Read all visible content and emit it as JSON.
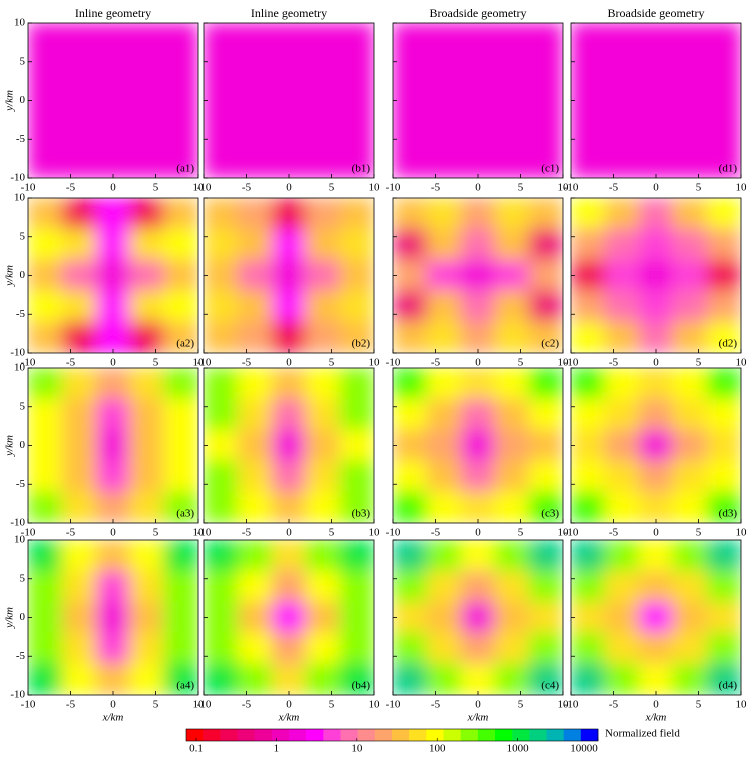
{
  "chart_data": {
    "type": "heatmap",
    "column_titles": [
      "Inline geometry",
      "Inline geometry",
      "Broadside geometry",
      "Broadside geometry"
    ],
    "xlabel": "x/km",
    "ylabel": "y/km",
    "xlim": [
      -10,
      10
    ],
    "ylim": [
      -10,
      10
    ],
    "xticks": [
      -10,
      -5,
      0,
      5,
      10
    ],
    "yticks": [
      -10,
      -5,
      0,
      5,
      10
    ],
    "colors": [
      "#ff0000",
      "#f8002e",
      "#f20055",
      "#ee0078",
      "#ee0098",
      "#f000b8",
      "#f400d8",
      "#ff00ff",
      "#ff40d8",
      "#ff70b0",
      "#ff8c8c",
      "#ffa46a",
      "#ffc040",
      "#ffe020",
      "#ffff00",
      "#ccff00",
      "#88ff00",
      "#44ff00",
      "#00ff00",
      "#00e840",
      "#00d080",
      "#00b4b4",
      "#0080e0",
      "#0000ff"
    ],
    "colorbar": {
      "label": "Normalized field",
      "lim": [
        0.075,
        10000
      ],
      "ticks": [
        0.1,
        1,
        10,
        100,
        1000,
        10000
      ],
      "log": true
    },
    "panels": [
      {
        "label": "(a1)",
        "z": [
          [
            2,
            2,
            2,
            2,
            2
          ],
          [
            2,
            2,
            2,
            2,
            2
          ],
          [
            2,
            2,
            1.5,
            2,
            2
          ],
          [
            2,
            2,
            2,
            2,
            2
          ],
          [
            2,
            2,
            2,
            2,
            2
          ]
        ]
      },
      {
        "label": "(b1)",
        "z": [
          [
            2,
            2,
            2,
            2,
            2
          ],
          [
            2,
            2,
            2,
            2,
            2
          ],
          [
            2,
            2,
            1.5,
            2,
            2
          ],
          [
            2,
            2,
            2,
            2,
            2
          ],
          [
            2,
            2,
            2,
            2,
            2
          ]
        ]
      },
      {
        "label": "(c1)",
        "z": [
          [
            2,
            2,
            2,
            2,
            2
          ],
          [
            2,
            2,
            2,
            2,
            2
          ],
          [
            2,
            2,
            1.5,
            2,
            2
          ],
          [
            2,
            2,
            2,
            2,
            2
          ],
          [
            2,
            2,
            2,
            2,
            2
          ]
        ]
      },
      {
        "label": "(d1)",
        "z": [
          [
            2,
            2,
            2,
            2,
            2
          ],
          [
            2,
            2,
            2,
            2,
            2
          ],
          [
            2,
            2,
            1.5,
            2,
            2
          ],
          [
            2,
            2,
            2,
            2,
            2
          ],
          [
            2,
            2,
            2,
            2,
            2
          ]
        ]
      },
      {
        "label": "(a2)",
        "z": [
          [
            30,
            0.3,
            3,
            0.3,
            30
          ],
          [
            100,
            60,
            3,
            60,
            100
          ],
          [
            30,
            10,
            2,
            10,
            30
          ],
          [
            100,
            60,
            3,
            60,
            100
          ],
          [
            30,
            0.3,
            3,
            0.3,
            30
          ]
        ]
      },
      {
        "label": "(b2)",
        "z": [
          [
            30,
            20,
            0.3,
            20,
            30
          ],
          [
            60,
            30,
            3,
            30,
            60
          ],
          [
            30,
            10,
            2,
            10,
            30
          ],
          [
            60,
            30,
            3,
            30,
            60
          ],
          [
            30,
            20,
            0.3,
            20,
            30
          ]
        ]
      },
      {
        "label": "(c2)",
        "z": [
          [
            30,
            60,
            20,
            60,
            30
          ],
          [
            0.5,
            30,
            10,
            30,
            0.5
          ],
          [
            20,
            5,
            2,
            5,
            20
          ],
          [
            0.5,
            30,
            10,
            30,
            0.5
          ],
          [
            30,
            60,
            20,
            60,
            30
          ]
        ]
      },
      {
        "label": "(d2)",
        "z": [
          [
            100,
            30,
            10,
            30,
            100
          ],
          [
            20,
            10,
            5,
            10,
            20
          ],
          [
            0.3,
            5,
            2,
            5,
            0.3
          ],
          [
            20,
            10,
            5,
            10,
            20
          ],
          [
            100,
            30,
            10,
            30,
            100
          ]
        ]
      },
      {
        "label": "(a3)",
        "z": [
          [
            300,
            60,
            20,
            60,
            300
          ],
          [
            100,
            30,
            5,
            30,
            100
          ],
          [
            100,
            30,
            2,
            30,
            100
          ],
          [
            100,
            30,
            5,
            30,
            100
          ],
          [
            300,
            60,
            20,
            60,
            300
          ]
        ]
      },
      {
        "label": "(b3)",
        "z": [
          [
            300,
            100,
            30,
            100,
            300
          ],
          [
            200,
            60,
            10,
            60,
            200
          ],
          [
            100,
            30,
            2,
            30,
            100
          ],
          [
            200,
            60,
            10,
            60,
            200
          ],
          [
            300,
            100,
            30,
            100,
            300
          ]
        ]
      },
      {
        "label": "(c3)",
        "z": [
          [
            500,
            100,
            60,
            100,
            500
          ],
          [
            100,
            30,
            10,
            30,
            100
          ],
          [
            30,
            20,
            2,
            20,
            30
          ],
          [
            100,
            30,
            10,
            30,
            100
          ],
          [
            500,
            100,
            60,
            100,
            500
          ]
        ]
      },
      {
        "label": "(d3)",
        "z": [
          [
            500,
            100,
            60,
            100,
            500
          ],
          [
            100,
            60,
            20,
            60,
            100
          ],
          [
            60,
            20,
            2,
            20,
            60
          ],
          [
            100,
            60,
            20,
            60,
            100
          ],
          [
            500,
            100,
            60,
            100,
            500
          ]
        ]
      },
      {
        "label": "(a4)",
        "z": [
          [
            1000,
            100,
            30,
            100,
            1000
          ],
          [
            300,
            60,
            5,
            60,
            300
          ],
          [
            200,
            30,
            2,
            30,
            200
          ],
          [
            300,
            60,
            5,
            60,
            300
          ],
          [
            1000,
            100,
            30,
            100,
            1000
          ]
        ]
      },
      {
        "label": "(b4)",
        "z": [
          [
            1000,
            300,
            60,
            300,
            1000
          ],
          [
            300,
            100,
            20,
            100,
            300
          ],
          [
            200,
            30,
            3,
            30,
            200
          ],
          [
            300,
            100,
            20,
            100,
            300
          ],
          [
            1000,
            300,
            60,
            300,
            1000
          ]
        ]
      },
      {
        "label": "(c4)",
        "z": [
          [
            2000,
            200,
            100,
            200,
            2000
          ],
          [
            300,
            60,
            20,
            60,
            300
          ],
          [
            60,
            30,
            2,
            30,
            60
          ],
          [
            300,
            60,
            20,
            60,
            300
          ],
          [
            2000,
            200,
            100,
            200,
            2000
          ]
        ]
      },
      {
        "label": "(d4)",
        "z": [
          [
            2000,
            300,
            100,
            300,
            2000
          ],
          [
            300,
            60,
            30,
            60,
            300
          ],
          [
            60,
            30,
            3,
            30,
            60
          ],
          [
            300,
            60,
            30,
            60,
            300
          ],
          [
            2000,
            300,
            100,
            300,
            2000
          ]
        ]
      }
    ]
  }
}
